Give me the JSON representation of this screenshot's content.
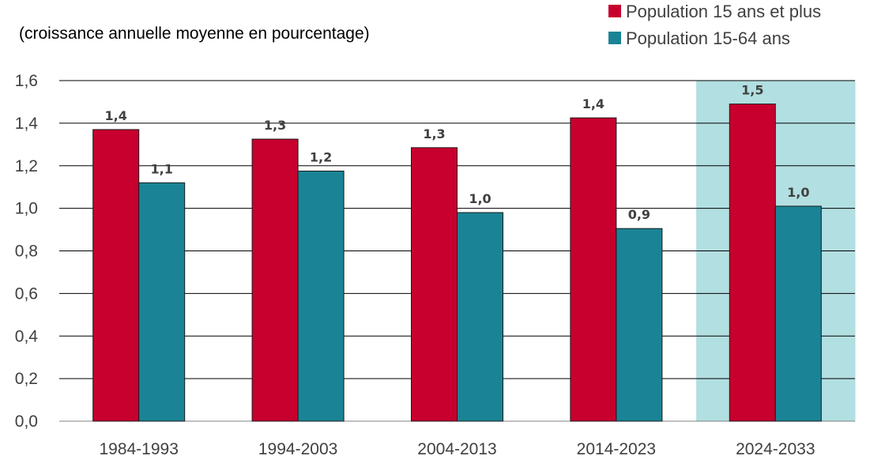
{
  "chart_data": {
    "type": "bar",
    "ylabel": "(croissance annuelle moyenne en pourcentage)",
    "categories": [
      "1984-1993",
      "1994-2003",
      "2004-2013",
      "2014-2023",
      "2024-2033"
    ],
    "series": [
      {
        "name": "Population 15 ans et plus",
        "color": "#C8002E",
        "values": [
          1.37,
          1.325,
          1.285,
          1.425,
          1.49
        ],
        "labels": [
          "1,4",
          "1,3",
          "1,3",
          "1,4",
          "1,5"
        ]
      },
      {
        "name": "Population 15-64 ans",
        "color": "#1A8496",
        "values": [
          1.12,
          1.175,
          0.98,
          0.905,
          1.01
        ],
        "labels": [
          "1,1",
          "1,2",
          "1,0",
          "0,9",
          "1,0"
        ]
      }
    ],
    "yticks": [
      "0,0",
      "0,2",
      "0,4",
      "0,6",
      "0,8",
      "1,0",
      "1,2",
      "1,4",
      "1,6"
    ],
    "ylim": [
      0,
      1.6
    ],
    "grid": true,
    "legend_position": "top-right",
    "highlight_category": "2024-2033",
    "highlight_color": "#B2DFE1"
  }
}
